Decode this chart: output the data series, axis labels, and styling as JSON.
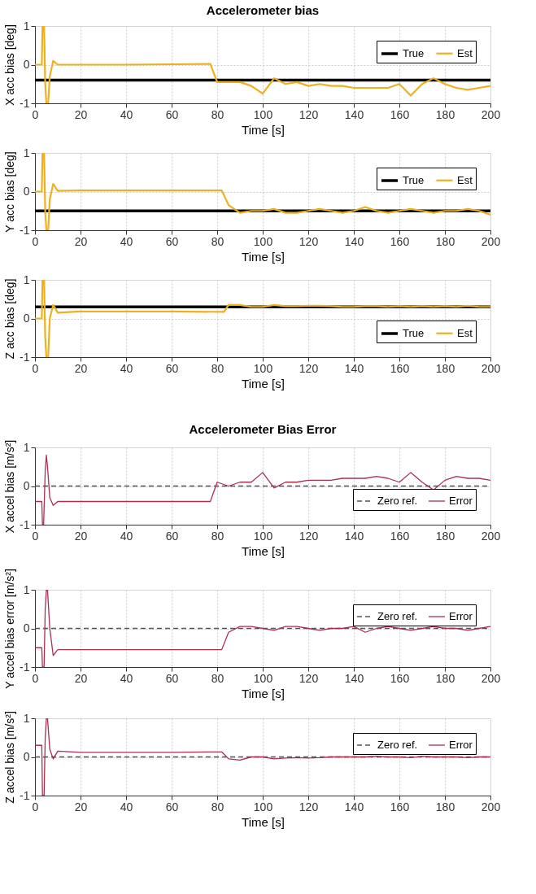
{
  "chart_data": [
    {
      "type": "line",
      "title": "Accelerometer bias",
      "xlabel": "Time [s]",
      "ylabel": "X acc bias [deg]",
      "xlim": [
        0,
        200
      ],
      "ylim": [
        -1,
        1
      ],
      "xticks": [
        0,
        20,
        40,
        60,
        80,
        100,
        120,
        140,
        160,
        180,
        200
      ],
      "yticks": [
        -1,
        0,
        1
      ],
      "grid": true,
      "legend": "top right",
      "series": [
        {
          "name": "True",
          "color": "#000000",
          "line_style": "solid",
          "x": [
            0,
            200
          ],
          "values": [
            -0.4,
            -0.4
          ]
        },
        {
          "name": "Est",
          "color": "#edb120",
          "line_style": "solid",
          "x": [
            0,
            3,
            3.3,
            4,
            4.5,
            5,
            5.8,
            6.5,
            8,
            10,
            20,
            40,
            60,
            77,
            80,
            85,
            90,
            95,
            100,
            105,
            110,
            115,
            120,
            125,
            130,
            135,
            140,
            145,
            150,
            155,
            160,
            165,
            170,
            175,
            180,
            185,
            190,
            195,
            200
          ],
          "values": [
            0,
            0,
            1,
            1,
            -0.5,
            -1,
            -1,
            -0.3,
            0.1,
            0,
            0,
            0,
            0.01,
            0.02,
            -0.45,
            -0.45,
            -0.45,
            -0.55,
            -0.75,
            -0.35,
            -0.5,
            -0.45,
            -0.55,
            -0.5,
            -0.55,
            -0.55,
            -0.6,
            -0.6,
            -0.6,
            -0.6,
            -0.5,
            -0.8,
            -0.5,
            -0.35,
            -0.5,
            -0.6,
            -0.65,
            -0.6,
            -0.55
          ]
        }
      ]
    },
    {
      "type": "line",
      "xlabel": "Time [s]",
      "ylabel": "Y acc bias [deg]",
      "xlim": [
        0,
        200
      ],
      "ylim": [
        -1,
        1
      ],
      "xticks": [
        0,
        20,
        40,
        60,
        80,
        100,
        120,
        140,
        160,
        180,
        200
      ],
      "yticks": [
        -1,
        0,
        1
      ],
      "grid": true,
      "legend": "top right",
      "series": [
        {
          "name": "True",
          "color": "#000000",
          "line_style": "solid",
          "x": [
            0,
            200
          ],
          "values": [
            -0.5,
            -0.5
          ]
        },
        {
          "name": "Est",
          "color": "#edb120",
          "line_style": "solid",
          "x": [
            0,
            3,
            3.3,
            4,
            4.5,
            5,
            5.8,
            6.5,
            8,
            10,
            20,
            40,
            60,
            82,
            85,
            90,
            95,
            100,
            105,
            110,
            115,
            120,
            125,
            130,
            135,
            140,
            145,
            150,
            155,
            160,
            165,
            170,
            175,
            180,
            185,
            190,
            195,
            200
          ],
          "values": [
            0,
            0,
            1,
            1,
            -0.5,
            -1,
            -1,
            -0.2,
            0.2,
            0.02,
            0.03,
            0.03,
            0.03,
            0.03,
            -0.35,
            -0.55,
            -0.5,
            -0.5,
            -0.45,
            -0.55,
            -0.55,
            -0.5,
            -0.45,
            -0.5,
            -0.55,
            -0.5,
            -0.4,
            -0.5,
            -0.55,
            -0.5,
            -0.45,
            -0.5,
            -0.55,
            -0.5,
            -0.5,
            -0.45,
            -0.5,
            -0.6
          ]
        }
      ]
    },
    {
      "type": "line",
      "xlabel": "Time [s]",
      "ylabel": "Z acc bias [deg]",
      "xlim": [
        0,
        200
      ],
      "ylim": [
        -1,
        1
      ],
      "xticks": [
        0,
        20,
        40,
        60,
        80,
        100,
        120,
        140,
        160,
        180,
        200
      ],
      "yticks": [
        -1,
        0,
        1
      ],
      "grid": true,
      "legend": "bottom right",
      "series": [
        {
          "name": "True",
          "color": "#000000",
          "line_style": "solid",
          "x": [
            0,
            200
          ],
          "values": [
            0.3,
            0.3
          ]
        },
        {
          "name": "Est",
          "color": "#edb120",
          "line_style": "solid",
          "x": [
            0,
            3,
            3.3,
            4,
            4.5,
            5,
            5.8,
            6.5,
            8,
            10,
            20,
            40,
            60,
            83,
            85,
            90,
            95,
            100,
            105,
            110,
            115,
            120,
            125,
            130,
            135,
            140,
            145,
            150,
            155,
            160,
            165,
            170,
            175,
            180,
            185,
            190,
            195,
            200
          ],
          "values": [
            0,
            0,
            1,
            1,
            -0.5,
            -1,
            -1,
            0,
            0.35,
            0.15,
            0.18,
            0.18,
            0.18,
            0.17,
            0.35,
            0.35,
            0.3,
            0.3,
            0.35,
            0.32,
            0.32,
            0.33,
            0.33,
            0.32,
            0.3,
            0.3,
            0.32,
            0.32,
            0.3,
            0.32,
            0.3,
            0.32,
            0.3,
            0.32,
            0.3,
            0.33,
            0.3,
            0.3
          ]
        }
      ]
    },
    {
      "type": "line",
      "title": "Accelerometer Bias Error",
      "xlabel": "Time [s]",
      "ylabel": "X accel bias [m/s²]",
      "xlim": [
        0,
        200
      ],
      "ylim": [
        -1,
        1
      ],
      "xticks": [
        0,
        20,
        40,
        60,
        80,
        100,
        120,
        140,
        160,
        180,
        200
      ],
      "yticks": [
        -1,
        0,
        1
      ],
      "grid": true,
      "legend": "bottom right",
      "series": [
        {
          "name": "Zero ref.",
          "color": "#555555",
          "line_style": "dashed",
          "x": [
            0,
            200
          ],
          "values": [
            0,
            0
          ]
        },
        {
          "name": "Error",
          "color": "#a8304f",
          "line_style": "solid",
          "x": [
            0,
            3,
            3.3,
            3.8,
            4.5,
            5,
            5.5,
            6.5,
            8,
            10,
            20,
            40,
            60,
            77,
            80,
            85,
            90,
            95,
            100,
            105,
            110,
            115,
            120,
            125,
            130,
            135,
            140,
            145,
            150,
            155,
            160,
            165,
            170,
            175,
            180,
            185,
            190,
            195,
            200
          ],
          "values": [
            -0.4,
            -0.4,
            -1,
            -1,
            0.4,
            0.8,
            0.5,
            -0.3,
            -0.5,
            -0.4,
            -0.4,
            -0.4,
            -0.4,
            -0.4,
            0.1,
            0,
            0.1,
            0.1,
            0.35,
            -0.05,
            0.1,
            0.1,
            0.15,
            0.15,
            0.15,
            0.2,
            0.2,
            0.2,
            0.25,
            0.2,
            0.1,
            0.35,
            0.1,
            -0.1,
            0.15,
            0.25,
            0.2,
            0.2,
            0.15
          ]
        }
      ]
    },
    {
      "type": "line",
      "xlabel": "Time [s]",
      "ylabel": "Y accel bias error [m/s²]",
      "xlim": [
        0,
        200
      ],
      "ylim": [
        -1,
        1
      ],
      "xticks": [
        0,
        20,
        40,
        60,
        80,
        100,
        120,
        140,
        160,
        180,
        200
      ],
      "yticks": [
        -1,
        0,
        1
      ],
      "grid": true,
      "legend": "top right",
      "series": [
        {
          "name": "Zero ref.",
          "color": "#555555",
          "line_style": "dashed",
          "x": [
            0,
            200
          ],
          "values": [
            0,
            0
          ]
        },
        {
          "name": "Error",
          "color": "#a8304f",
          "line_style": "solid",
          "x": [
            0,
            3,
            3.3,
            4,
            4.5,
            5,
            5.5,
            6.5,
            8,
            10,
            20,
            40,
            60,
            82,
            85,
            90,
            95,
            100,
            105,
            110,
            115,
            120,
            125,
            130,
            135,
            140,
            145,
            150,
            155,
            160,
            165,
            170,
            175,
            180,
            185,
            190,
            195,
            200
          ],
          "values": [
            -0.5,
            -0.5,
            -1,
            -1,
            0.5,
            1,
            1,
            0,
            -0.7,
            -0.55,
            -0.55,
            -0.55,
            -0.55,
            -0.55,
            -0.1,
            0.05,
            0.05,
            0,
            -0.05,
            0.05,
            0.05,
            0,
            -0.05,
            0,
            0,
            0.05,
            -0.1,
            0,
            0.05,
            0,
            -0.05,
            0,
            0.05,
            0,
            0,
            -0.05,
            0,
            0.05
          ]
        }
      ]
    },
    {
      "type": "line",
      "xlabel": "Time [s]",
      "ylabel": "Z accel bias [m/s²]",
      "xlim": [
        0,
        200
      ],
      "ylim": [
        -1,
        1
      ],
      "xticks": [
        0,
        20,
        40,
        60,
        80,
        100,
        120,
        140,
        160,
        180,
        200
      ],
      "yticks": [
        -1,
        0,
        1
      ],
      "grid": true,
      "legend": "top right",
      "series": [
        {
          "name": "Zero ref.",
          "color": "#555555",
          "line_style": "dashed",
          "x": [
            0,
            200
          ],
          "values": [
            0,
            0
          ]
        },
        {
          "name": "Error",
          "color": "#a8304f",
          "line_style": "solid",
          "x": [
            0,
            3,
            3.3,
            4,
            4.5,
            5,
            5.5,
            6.5,
            8,
            10,
            20,
            40,
            60,
            82,
            85,
            90,
            95,
            100,
            105,
            110,
            115,
            120,
            125,
            130,
            135,
            140,
            145,
            150,
            155,
            160,
            165,
            170,
            175,
            180,
            185,
            190,
            195,
            200
          ],
          "values": [
            0.3,
            0.3,
            -1,
            -1,
            0.5,
            1,
            1,
            0.2,
            -0.05,
            0.15,
            0.12,
            0.12,
            0.12,
            0.13,
            -0.05,
            -0.08,
            0,
            0,
            -0.05,
            -0.03,
            -0.02,
            -0.03,
            -0.02,
            0,
            0,
            0,
            0,
            0.02,
            0,
            0,
            -0.02,
            0.02,
            0,
            0,
            0,
            -0.02,
            0,
            0
          ]
        }
      ]
    }
  ]
}
